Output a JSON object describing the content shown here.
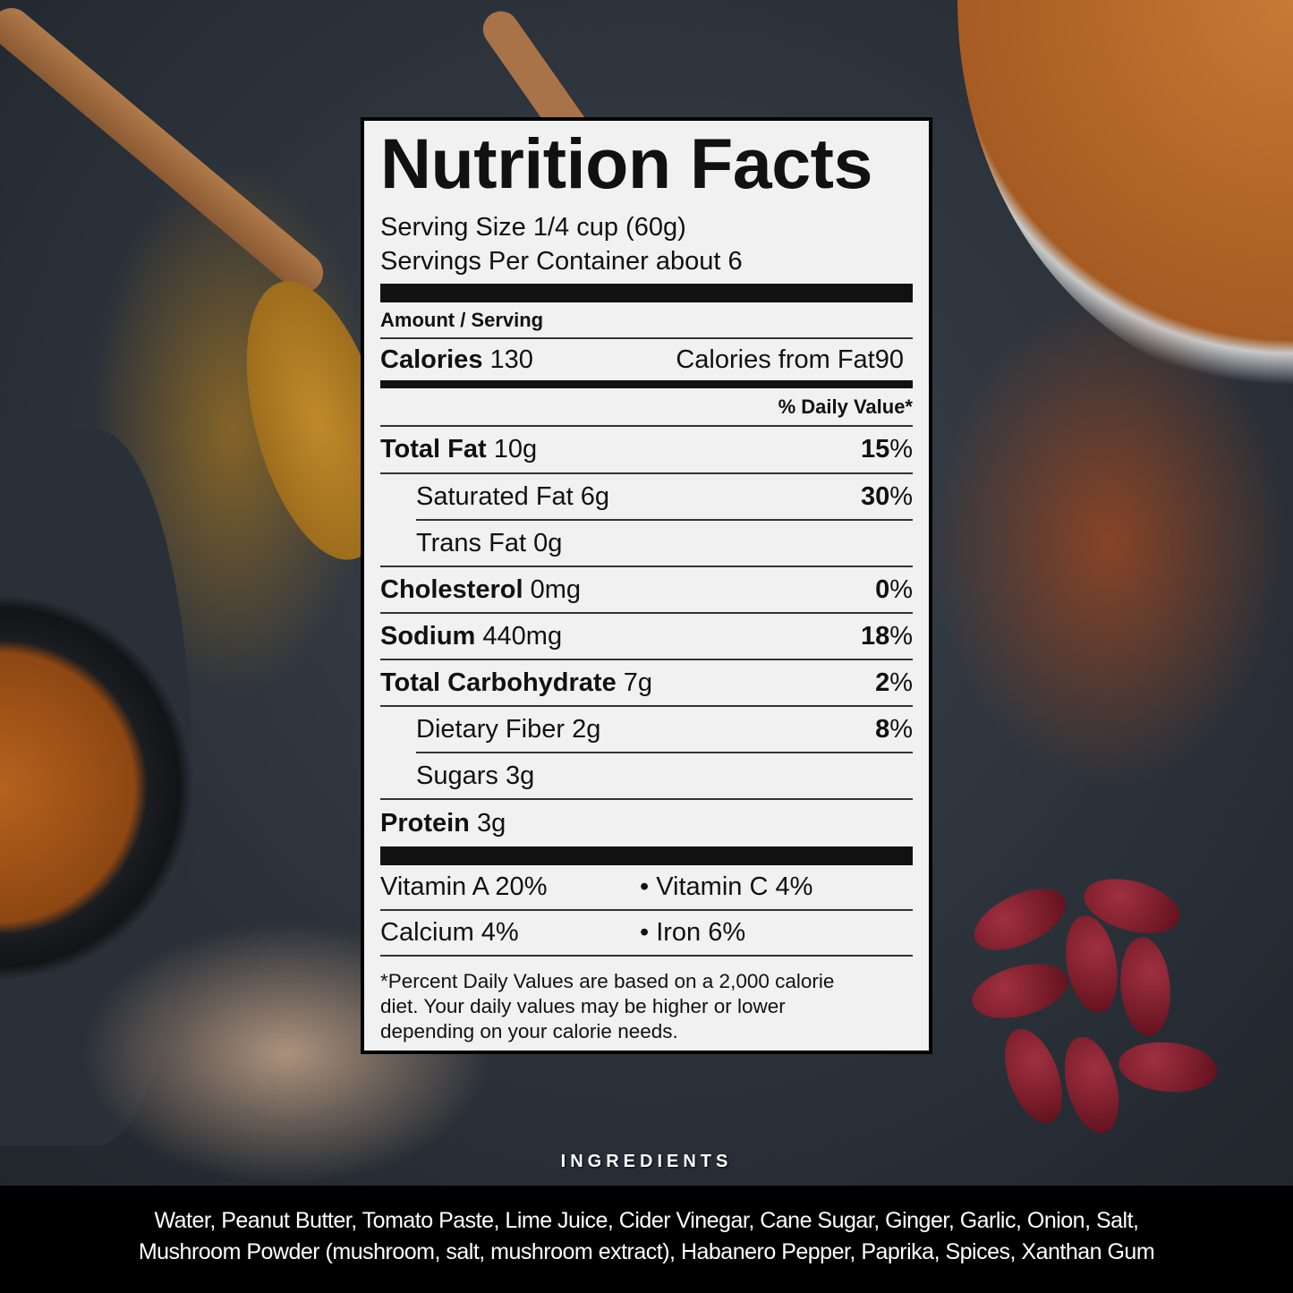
{
  "label": {
    "title": "Nutrition Facts",
    "serving_size": "Serving Size 1/4 cup (60g)",
    "servings_per_container": "Servings Per Container about 6",
    "amount_per_serving": "Amount / Serving",
    "calories_label": "Calories",
    "calories_value": "130",
    "calories_from_fat": "Calories from Fat90",
    "daily_value_header": "% Daily Value*",
    "nutrients": [
      {
        "name": "Total Fat",
        "amount": "10g",
        "dv_num": "15",
        "dv_pct": "%"
      },
      {
        "name": "Saturated Fat",
        "amount": "6g",
        "dv_num": "30",
        "dv_pct": "%"
      },
      {
        "name": "Trans Fat",
        "amount": "0g"
      },
      {
        "name": "Cholesterol",
        "amount": "0mg",
        "dv_num": "0",
        "dv_pct": "%"
      },
      {
        "name": "Sodium",
        "amount": "440mg",
        "dv_num": "18",
        "dv_pct": "%"
      },
      {
        "name": "Total Carbohydrate",
        "amount": "7g",
        "dv_num": "2",
        "dv_pct": "%"
      },
      {
        "name": "Dietary Fiber",
        "amount": "2g",
        "dv_num": "8",
        "dv_pct": "%"
      },
      {
        "name": "Sugars",
        "amount": "3g"
      },
      {
        "name": "Protein",
        "amount": "3g"
      }
    ],
    "vitamins": [
      [
        "Vitamin A 20%",
        "• Vitamin C 4%"
      ],
      [
        "Calcium 4%",
        "• Iron 6%"
      ]
    ],
    "footnote": [
      "*Percent Daily Values are based on a 2,000 calorie",
      "diet. Your daily values may be higher or lower",
      "depending on your calorie needs."
    ]
  },
  "ingredients": {
    "heading": "INGREDIENTS",
    "lines": [
      "Water, Peanut Butter, Tomato Paste, Lime Juice, Cider Vinegar, Cane Sugar, Ginger, Garlic, Onion, Salt,",
      "Mushroom Powder (mushroom, salt, mushroom extract), Habanero Pepper, Paprika, Spices, Xanthan Gum"
    ]
  }
}
